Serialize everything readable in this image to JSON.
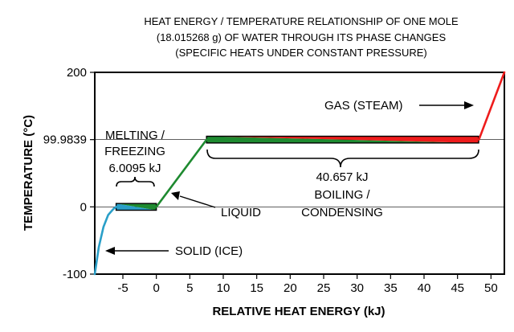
{
  "chart_data": {
    "type": "line",
    "title_lines": [
      "HEAT ENERGY / TEMPERATURE RELATIONSHIP OF ONE MOLE",
      "(18.015268 g) OF WATER THROUGH ITS PHASE CHANGES",
      "(SPECIFIC HEATS UNDER CONSTANT PRESSURE)"
    ],
    "xlabel": "RELATIVE HEAT ENERGY (kJ)",
    "ylabel": "TEMPERATURE (°C)",
    "xlim": [
      -9.2,
      52
    ],
    "ylim": [
      -100,
      200
    ],
    "x_ticks": [
      {
        "value": -5,
        "label": "-5"
      },
      {
        "value": 0,
        "label": "0"
      },
      {
        "value": 5,
        "label": "5"
      },
      {
        "value": 10,
        "label": "10"
      },
      {
        "value": 15,
        "label": "15"
      },
      {
        "value": 20,
        "label": "20"
      },
      {
        "value": 25,
        "label": "25"
      },
      {
        "value": 30,
        "label": "30"
      },
      {
        "value": 35,
        "label": "35"
      },
      {
        "value": 40,
        "label": "40"
      },
      {
        "value": 45,
        "label": "45"
      },
      {
        "value": 50,
        "label": "50"
      }
    ],
    "y_ticks": [
      {
        "value": -100,
        "label": "-100"
      },
      {
        "value": 0,
        "label": "0"
      },
      {
        "value": 99.9839,
        "label": "99.9839"
      },
      {
        "value": 200,
        "label": "200"
      }
    ],
    "segments": [
      {
        "phase": "solid",
        "color": "#2a9fc8",
        "points": [
          [
            -9.2,
            -100
          ],
          [
            -8.6,
            -60
          ],
          [
            -7.9,
            -30
          ],
          [
            -7.2,
            -12
          ],
          [
            -6.4,
            -3
          ],
          [
            -6.0095,
            0
          ]
        ]
      },
      {
        "phase": "liquid",
        "color": "#1e8a30",
        "points": [
          [
            0,
            0
          ],
          [
            7.5,
            99.9839
          ]
        ]
      },
      {
        "phase": "gas",
        "color": "#ee1c1c",
        "points": [
          [
            48.2,
            99.9839
          ],
          [
            52,
            200
          ]
        ]
      }
    ],
    "plateaus": [
      {
        "name": "melting",
        "x_start": -6.0095,
        "x_end": 0,
        "y": 0,
        "color_low": "#2a9fc8",
        "color_high": "#1e8a30",
        "height_units": 10
      },
      {
        "name": "boiling",
        "x_start": 7.5,
        "x_end": 48.157,
        "y": 99.9839,
        "color_low": "#1e8a30",
        "color_high": "#ee1c1c",
        "height_units": 10
      }
    ],
    "annotations": {
      "melting_lines": [
        "MELTING /",
        "FREEZING",
        "6.0095 kJ"
      ],
      "boiling_lines": [
        "40.657 kJ",
        "BOILING /",
        "CONDENSING"
      ],
      "gas": "GAS (STEAM)",
      "liquid": "LIQUID",
      "solid": "SOLID (ICE)"
    }
  }
}
